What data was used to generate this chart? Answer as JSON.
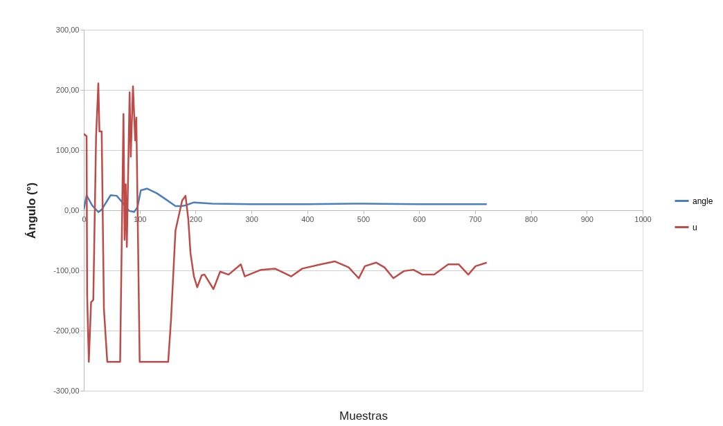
{
  "chart_data": {
    "type": "line",
    "xlabel": "Muestras",
    "ylabel": "Ángulo (°)",
    "xlim": [
      0,
      1000
    ],
    "xticks": [
      0,
      100,
      200,
      300,
      400,
      500,
      600,
      700,
      800,
      900,
      1000
    ],
    "ylim": [
      -300,
      300
    ],
    "yticks": [
      {
        "value": -300,
        "label": "-300,00"
      },
      {
        "value": -200,
        "label": "-200,00"
      },
      {
        "value": -100,
        "label": "-100,00"
      },
      {
        "value": 0,
        "label": "0,00"
      },
      {
        "value": 100,
        "label": "100,00"
      },
      {
        "value": 200,
        "label": "200,00"
      },
      {
        "value": 300,
        "label": "300,00"
      }
    ],
    "grid": "y",
    "legend": "right",
    "marker": "none",
    "line_style": "solid",
    "series": [
      {
        "name": "angle",
        "color": "#4a7ebb",
        "x": [
          0,
          5,
          15,
          26,
          32,
          48,
          59,
          69,
          81,
          90,
          96,
          102,
          113,
          131,
          147,
          164,
          175,
          182,
          197,
          230,
          300,
          400,
          500,
          600,
          700,
          721
        ],
        "values": [
          1,
          25,
          8,
          -3,
          1,
          25,
          24,
          13,
          -1,
          -3,
          5,
          33,
          36,
          28,
          18,
          7,
          7,
          8,
          13,
          11,
          10,
          10,
          11,
          10,
          10,
          10
        ]
      },
      {
        "name": "u",
        "color": "#be4b48",
        "x": [
          0,
          5,
          6,
          9,
          13,
          17,
          22,
          26,
          28,
          32,
          36,
          42,
          65,
          71,
          73,
          75,
          77,
          82,
          84,
          88,
          92,
          94,
          100,
          151,
          156,
          164,
          176,
          182,
          187,
          191,
          197,
          203,
          211,
          216,
          232,
          244,
          259,
          281,
          288,
          317,
          342,
          371,
          391,
          424,
          449,
          474,
          492,
          503,
          523,
          538,
          554,
          573,
          590,
          606,
          627,
          652,
          671,
          688,
          701,
          721
        ],
        "values": [
          127,
          123,
          -141,
          -252,
          -153,
          -149,
          123,
          211,
          131,
          131,
          -164,
          -252,
          -252,
          160,
          -49,
          43,
          -61,
          196,
          89,
          206,
          116,
          154,
          -252,
          -252,
          -183,
          -34,
          16,
          24,
          -15,
          -72,
          -110,
          -128,
          -108,
          -107,
          -131,
          -102,
          -107,
          -90,
          -110,
          -99,
          -97,
          -110,
          -97,
          -90,
          -85,
          -95,
          -113,
          -93,
          -87,
          -95,
          -113,
          -101,
          -99,
          -107,
          -107,
          -90,
          -90,
          -107,
          -93,
          -87
        ]
      }
    ]
  }
}
